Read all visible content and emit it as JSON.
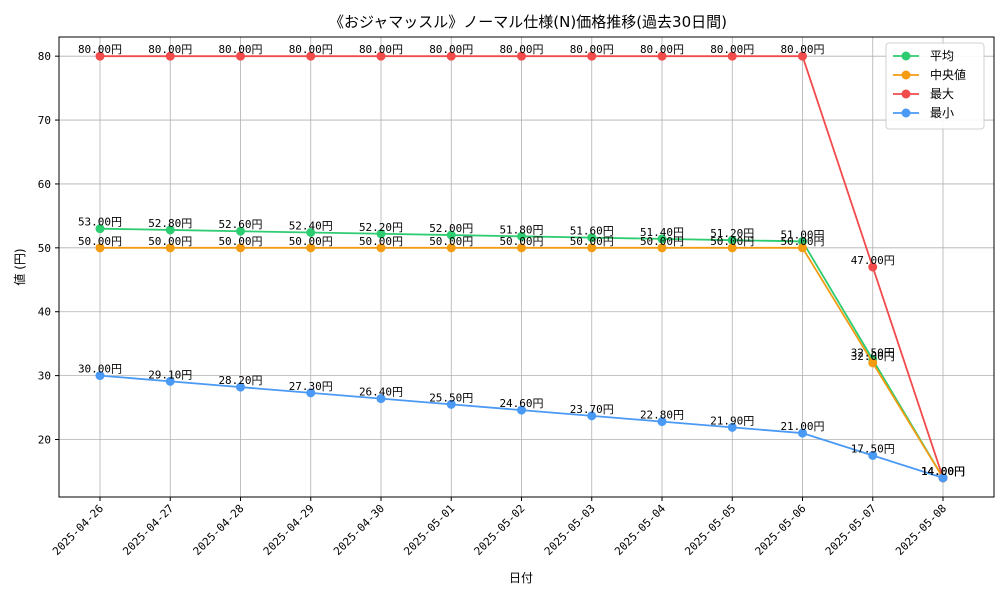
{
  "chart_data": {
    "type": "line",
    "title": "《おジャマッスル》ノーマル仕様(N)価格推移(過去30日間)",
    "xlabel": "日付",
    "ylabel": "値 (円)",
    "label_suffix": "円",
    "x": [
      "2025-04-26",
      "2025-04-27",
      "2025-04-28",
      "2025-04-29",
      "2025-04-30",
      "2025-05-01",
      "2025-05-02",
      "2025-05-03",
      "2025-05-04",
      "2025-05-05",
      "2025-05-06",
      "2025-05-07",
      "2025-05-08"
    ],
    "ylim": [
      11,
      83
    ],
    "yticks": [
      20,
      30,
      40,
      50,
      60,
      70,
      80
    ],
    "grid": true,
    "legend_position": "top-right",
    "series": [
      {
        "name": "平均",
        "color": "#2ecc71",
        "values": [
          53.0,
          52.8,
          52.6,
          52.4,
          52.2,
          52.0,
          51.8,
          51.6,
          51.4,
          51.2,
          51.0,
          32.5,
          14.0
        ]
      },
      {
        "name": "中央値",
        "color": "#f39c12",
        "values": [
          50.0,
          50.0,
          50.0,
          50.0,
          50.0,
          50.0,
          50.0,
          50.0,
          50.0,
          50.0,
          50.0,
          32.0,
          14.0
        ]
      },
      {
        "name": "最大",
        "color": "#f14b4b",
        "values": [
          80.0,
          80.0,
          80.0,
          80.0,
          80.0,
          80.0,
          80.0,
          80.0,
          80.0,
          80.0,
          80.0,
          47.0,
          14.0
        ]
      },
      {
        "name": "最小",
        "color": "#4a9af5",
        "values": [
          30.0,
          29.1,
          28.2,
          27.3,
          26.4,
          25.5,
          24.6,
          23.7,
          22.8,
          21.9,
          21.0,
          17.5,
          14.0
        ]
      }
    ]
  }
}
